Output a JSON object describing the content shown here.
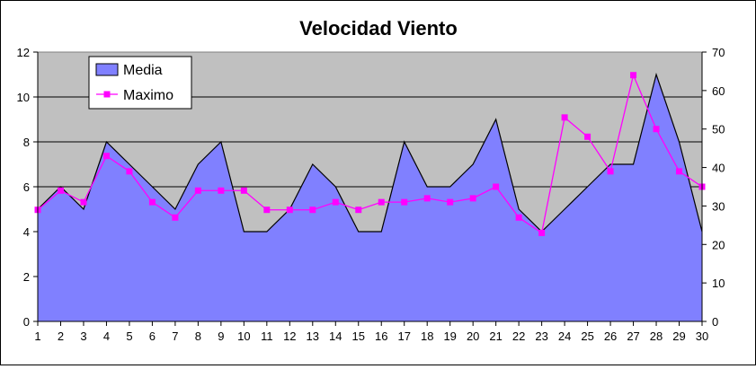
{
  "chart_data": {
    "type": "area+line",
    "title": "Velocidad Viento",
    "x": [
      1,
      2,
      3,
      4,
      5,
      6,
      7,
      8,
      9,
      10,
      11,
      12,
      13,
      14,
      15,
      16,
      17,
      18,
      19,
      20,
      21,
      22,
      23,
      24,
      25,
      26,
      27,
      28,
      29,
      30
    ],
    "series": [
      {
        "name": "Media",
        "type": "area",
        "axis": "left",
        "color": "#8080ff",
        "values": [
          5,
          6,
          5,
          8,
          7,
          6,
          5,
          7,
          8,
          4,
          4,
          5,
          7,
          6,
          4,
          4,
          8,
          6,
          6,
          7,
          9,
          5,
          4,
          5,
          6,
          7,
          7,
          11,
          8,
          4
        ]
      },
      {
        "name": "Maximo",
        "type": "line",
        "axis": "right",
        "color": "#ff00ff",
        "values": [
          29,
          34,
          31,
          43,
          39,
          31,
          27,
          34,
          34,
          34,
          29,
          29,
          29,
          31,
          29,
          31,
          31,
          32,
          31,
          32,
          35,
          27,
          23,
          53,
          48,
          39,
          64,
          50,
          39,
          35
        ]
      }
    ],
    "y_left": {
      "min": 0,
      "max": 12,
      "ticks": [
        0,
        2,
        4,
        6,
        8,
        10,
        12
      ]
    },
    "y_right": {
      "min": 0,
      "max": 70,
      "ticks": [
        0,
        10,
        20,
        30,
        40,
        50,
        60,
        70
      ]
    },
    "plot_background": "#c0c0c0",
    "grid": true,
    "legend": "top-left"
  }
}
